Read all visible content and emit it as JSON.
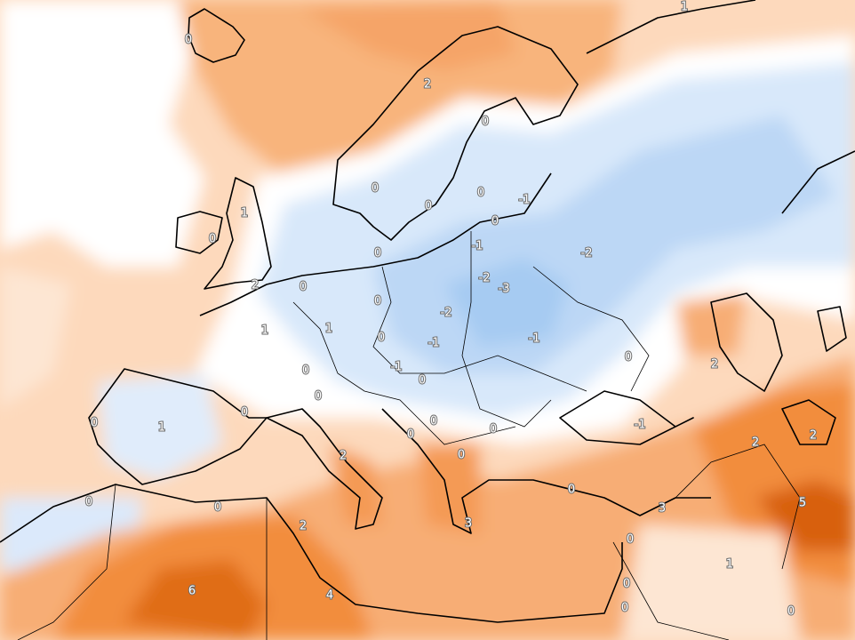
{
  "map": {
    "contour_labels": [
      0,
      1,
      2,
      0,
      0,
      0,
      -1,
      0,
      1,
      0,
      0,
      -1,
      -2,
      0,
      -2,
      -3,
      2,
      0,
      0,
      -2,
      1,
      1,
      0,
      -1,
      -1,
      0,
      2,
      0,
      -1,
      0,
      0,
      0,
      1,
      0,
      0,
      0,
      0,
      -1,
      2,
      2,
      2,
      0,
      0,
      0,
      0,
      2,
      3,
      5,
      3,
      0,
      1,
      0,
      6,
      4,
      0,
      0
    ]
  }
}
